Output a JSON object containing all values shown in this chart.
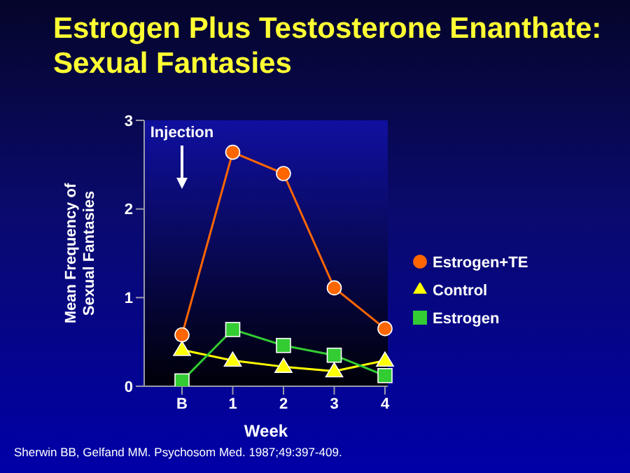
{
  "chart_data": {
    "type": "line",
    "title": "Estrogen Plus Testosterone Enanthate: Sexual Fantasies",
    "xlabel": "Week",
    "ylabel": "Mean Frequency of Sexual Fantasies",
    "categories": [
      "B",
      "1",
      "2",
      "3",
      "4"
    ],
    "series": [
      {
        "name": "Estrogen+TE",
        "color": "#ff6600",
        "marker": "circle",
        "values": [
          0.58,
          2.64,
          2.4,
          1.11,
          0.65
        ]
      },
      {
        "name": "Control",
        "color": "#ffff00",
        "marker": "triangle",
        "values": [
          0.41,
          0.29,
          0.22,
          0.17,
          0.29
        ]
      },
      {
        "name": "Estrogen",
        "color": "#33cc33",
        "marker": "square",
        "values": [
          0.06,
          0.64,
          0.46,
          0.35,
          0.12
        ]
      }
    ],
    "ylim": [
      0,
      3
    ],
    "yticks": [
      0,
      1,
      2,
      3
    ],
    "grid": false,
    "legend": "right",
    "line_style": "solid",
    "annotations": [
      "Injection",
      "Sherwin BB, Gelfand MM. Psychosom Med. 1987;49:397-409."
    ]
  }
}
